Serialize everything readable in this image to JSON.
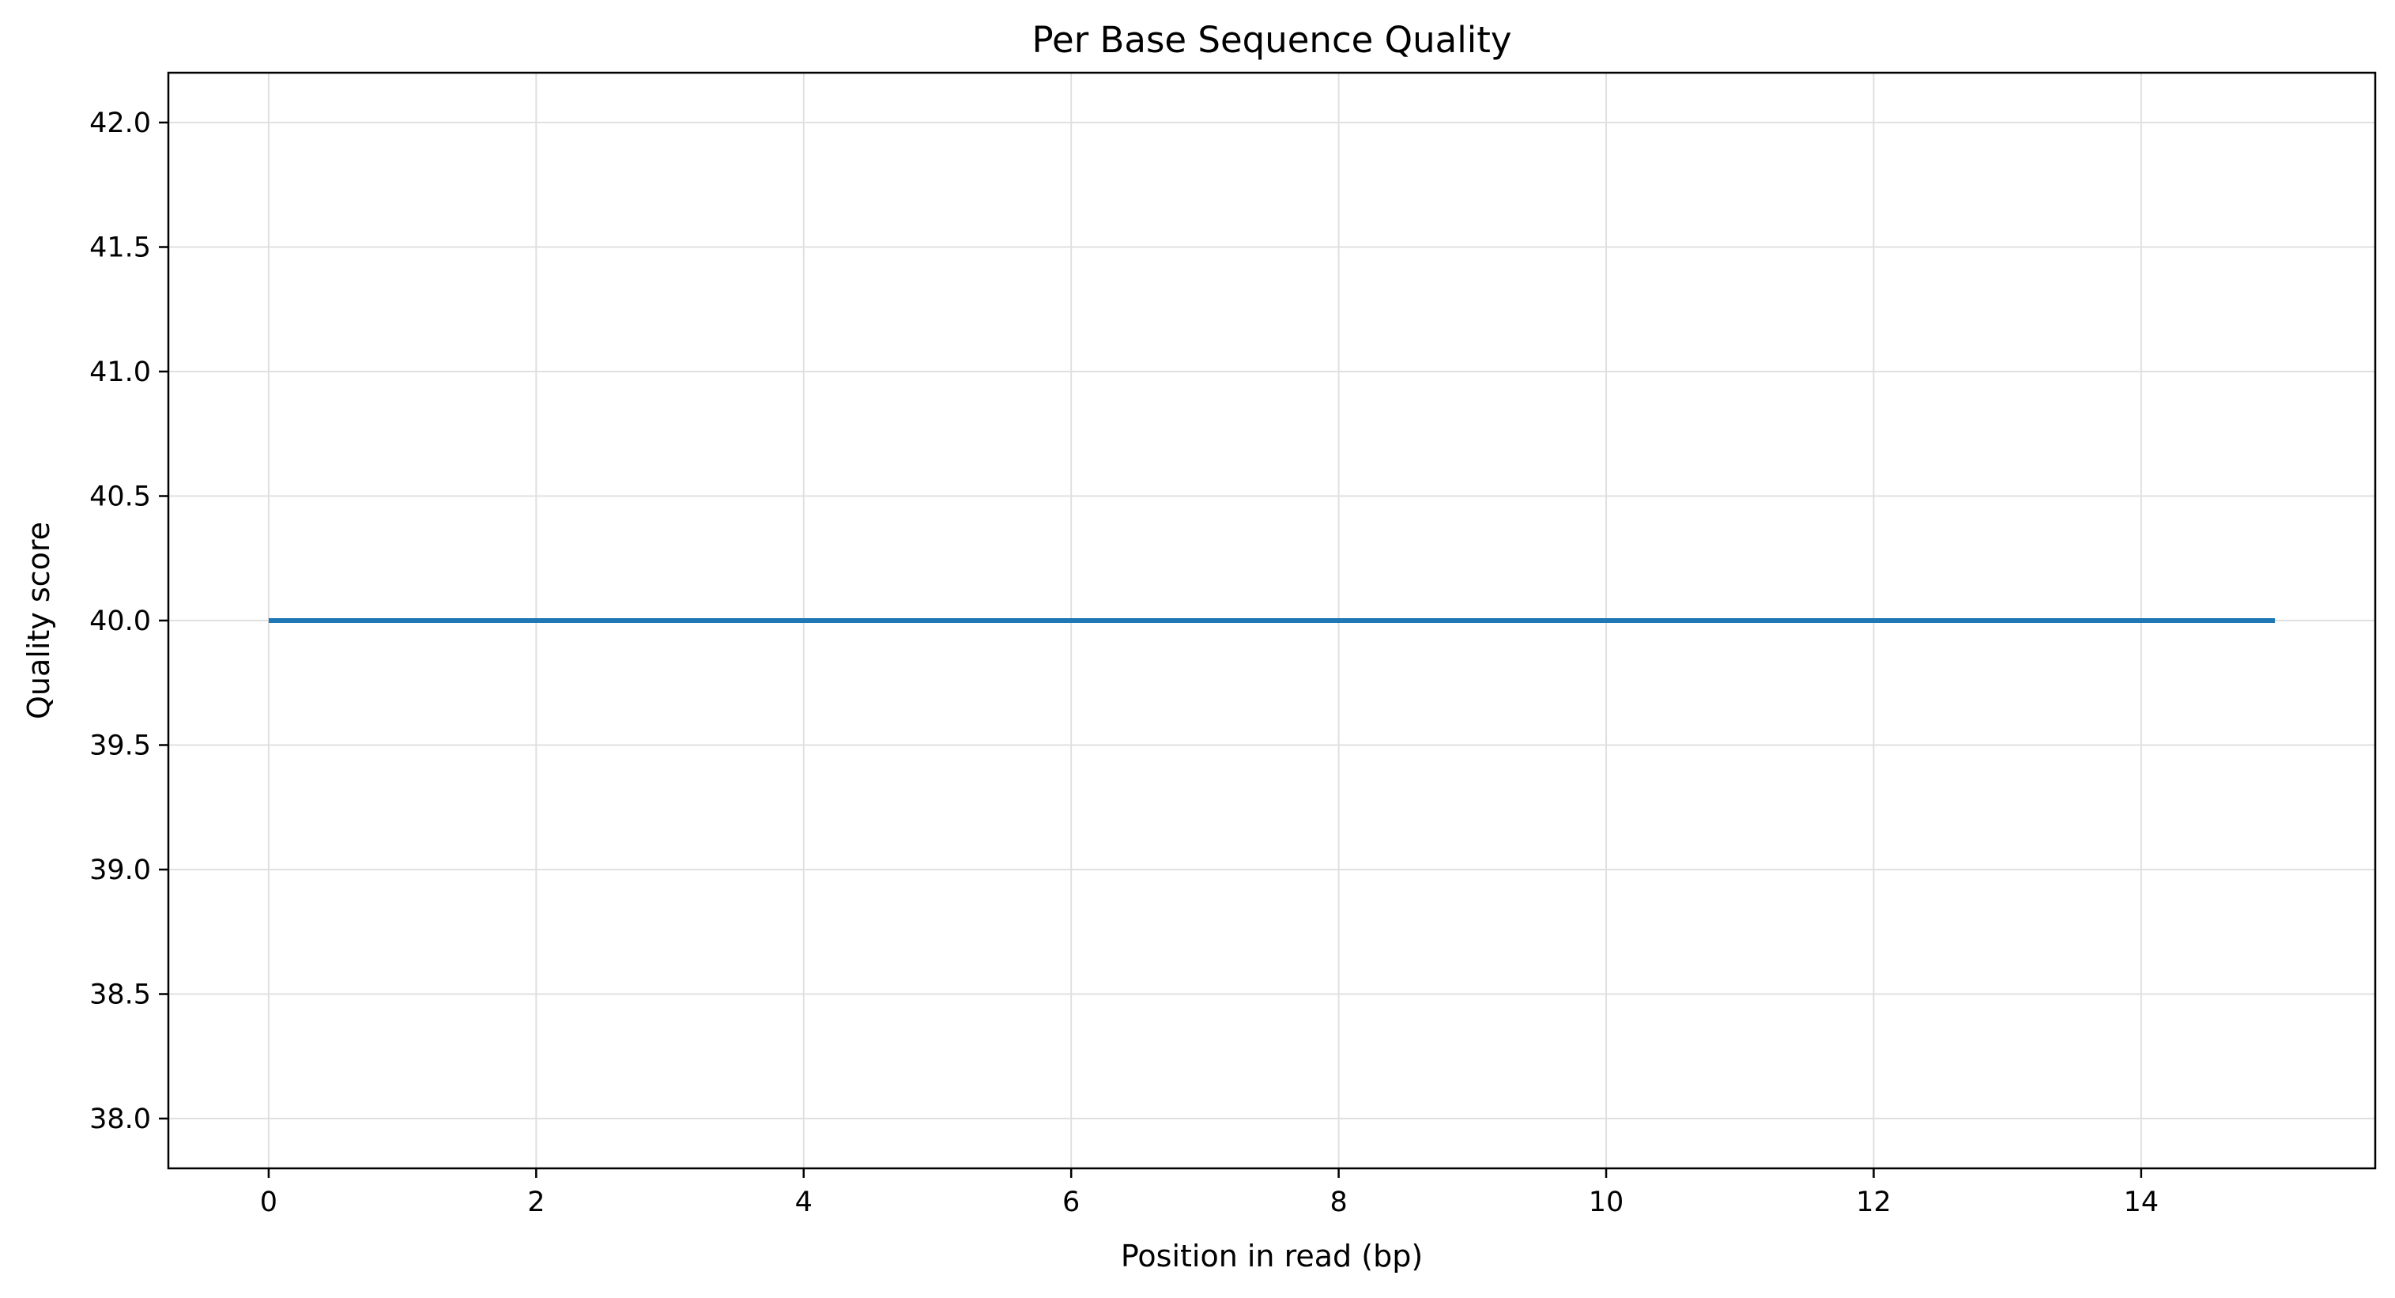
{
  "chart_data": {
    "type": "line",
    "title": "Per Base Sequence Quality",
    "xlabel": "Position in read (bp)",
    "ylabel": "Quality score",
    "xlim": [
      -0.75,
      15.75
    ],
    "ylim": [
      37.8,
      42.2
    ],
    "xticks": [
      0,
      2,
      4,
      6,
      8,
      10,
      12,
      14
    ],
    "yticks": [
      38.0,
      38.5,
      39.0,
      39.5,
      40.0,
      40.5,
      41.0,
      41.5,
      42.0
    ],
    "grid": true,
    "legend": "none",
    "series": [
      {
        "color": "#1f77b4",
        "x": [
          0,
          1,
          2,
          3,
          4,
          5,
          6,
          7,
          8,
          9,
          10,
          11,
          12,
          13,
          14,
          15
        ],
        "y": [
          40,
          40,
          40,
          40,
          40,
          40,
          40,
          40,
          40,
          40,
          40,
          40,
          40,
          40,
          40,
          40
        ]
      }
    ]
  },
  "colors": {
    "series": "#1f77b4",
    "grid": "#e0e0e0",
    "axes": "#000000",
    "background": "#ffffff"
  }
}
